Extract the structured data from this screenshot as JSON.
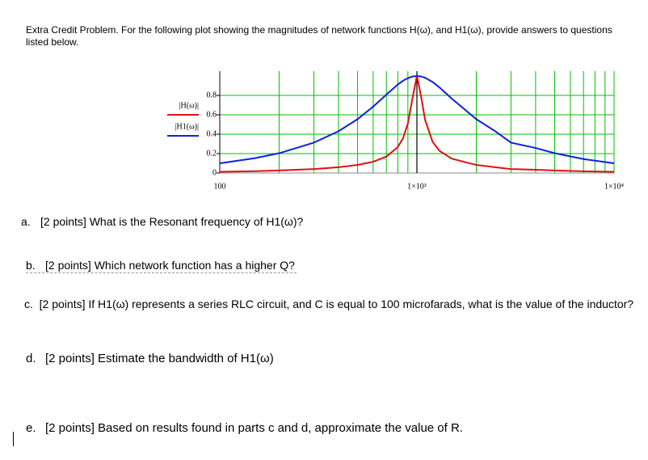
{
  "intro": "Extra Credit Problem.  For the following plot showing the magnitudes of network functions H(ω), and H1(ω), provide answers to questions listed below.",
  "questions": [
    {
      "label": "a.",
      "text": "[2 points] What is the Resonant frequency of H1(ω)?"
    },
    {
      "label": "b.",
      "text": "[2 points] Which network function has a higher Q?"
    },
    {
      "label": "c.",
      "text": "[2 points] If H1(ω) represents a series RLC circuit, and C is equal to 100 microfarads, what is the value of the inductor?"
    },
    {
      "label": "d.",
      "text": "[2 points] Estimate the bandwidth of H1(ω)"
    },
    {
      "label": "e.",
      "text": "[2 points] Based on results found in parts c and d, approximate the value of R."
    }
  ],
  "chart_data": {
    "type": "line",
    "x": [
      100,
      150,
      200,
      300,
      400,
      500,
      600,
      700,
      800,
      850,
      900,
      950,
      1000,
      1050,
      1100,
      1200,
      1300,
      1500,
      2000,
      2500,
      3000,
      4000,
      5000,
      7000,
      10000
    ],
    "series": [
      {
        "name": "|H(ω)|",
        "color": "#e01010",
        "values": [
          0.013,
          0.019,
          0.026,
          0.041,
          0.059,
          0.083,
          0.116,
          0.169,
          0.268,
          0.358,
          0.51,
          0.773,
          1,
          0.788,
          0.548,
          0.323,
          0.229,
          0.148,
          0.083,
          0.059,
          0.041,
          0.033,
          0.026,
          0.018,
          0.013
        ]
      },
      {
        "name": "|H1(ω)|",
        "color": "#1020e0",
        "values": [
          0.1,
          0.152,
          0.204,
          0.313,
          0.43,
          0.555,
          0.684,
          0.808,
          0.912,
          0.951,
          0.978,
          0.995,
          1,
          0.995,
          0.982,
          0.939,
          0.883,
          0.768,
          0.555,
          0.43,
          0.313,
          0.258,
          0.204,
          0.144,
          0.1
        ]
      }
    ],
    "log_x": true,
    "xlim": [
      100,
      10000
    ],
    "xticks": [
      100,
      {
        "value": 1000,
        "label": "1×10³"
      },
      {
        "value": 10000,
        "label": "1×10⁴"
      }
    ],
    "xgrid": [
      200,
      300,
      400,
      500,
      600,
      700,
      800,
      900,
      2000,
      3000,
      4000,
      5000,
      6000,
      7000,
      8000,
      9000
    ],
    "xmarker": 1000,
    "ylim": [
      0,
      1.05
    ],
    "yticks": [
      0,
      0.2,
      0.4,
      0.6,
      0.8
    ],
    "grid": true,
    "grid_color": "#00c000"
  }
}
